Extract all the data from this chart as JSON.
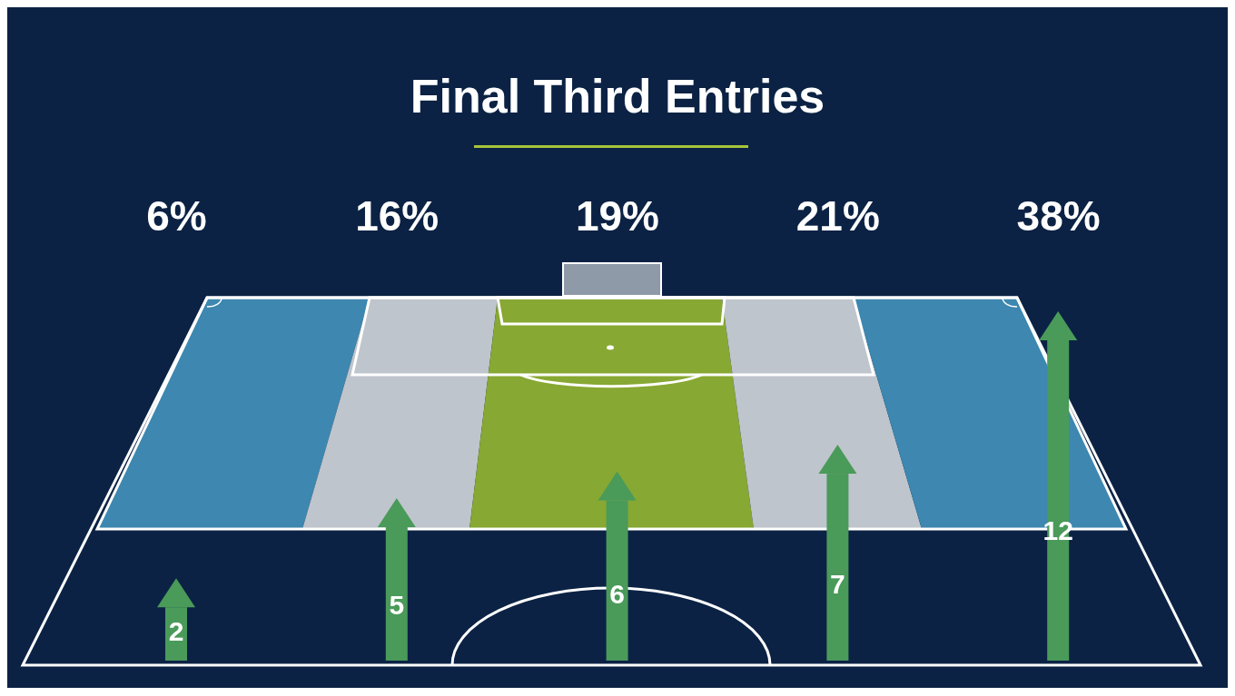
{
  "chart_data": {
    "type": "bar",
    "title": "Final Third Entries",
    "categories": [
      null,
      null,
      null,
      null,
      null
    ],
    "data_labels": true,
    "series": [
      {
        "color": "#4a9a5a",
        "values": [
          2,
          5,
          6,
          7,
          12
        ]
      }
    ],
    "annotations": [
      "6%",
      "16%",
      "19%",
      "21%",
      "38%"
    ]
  }
}
